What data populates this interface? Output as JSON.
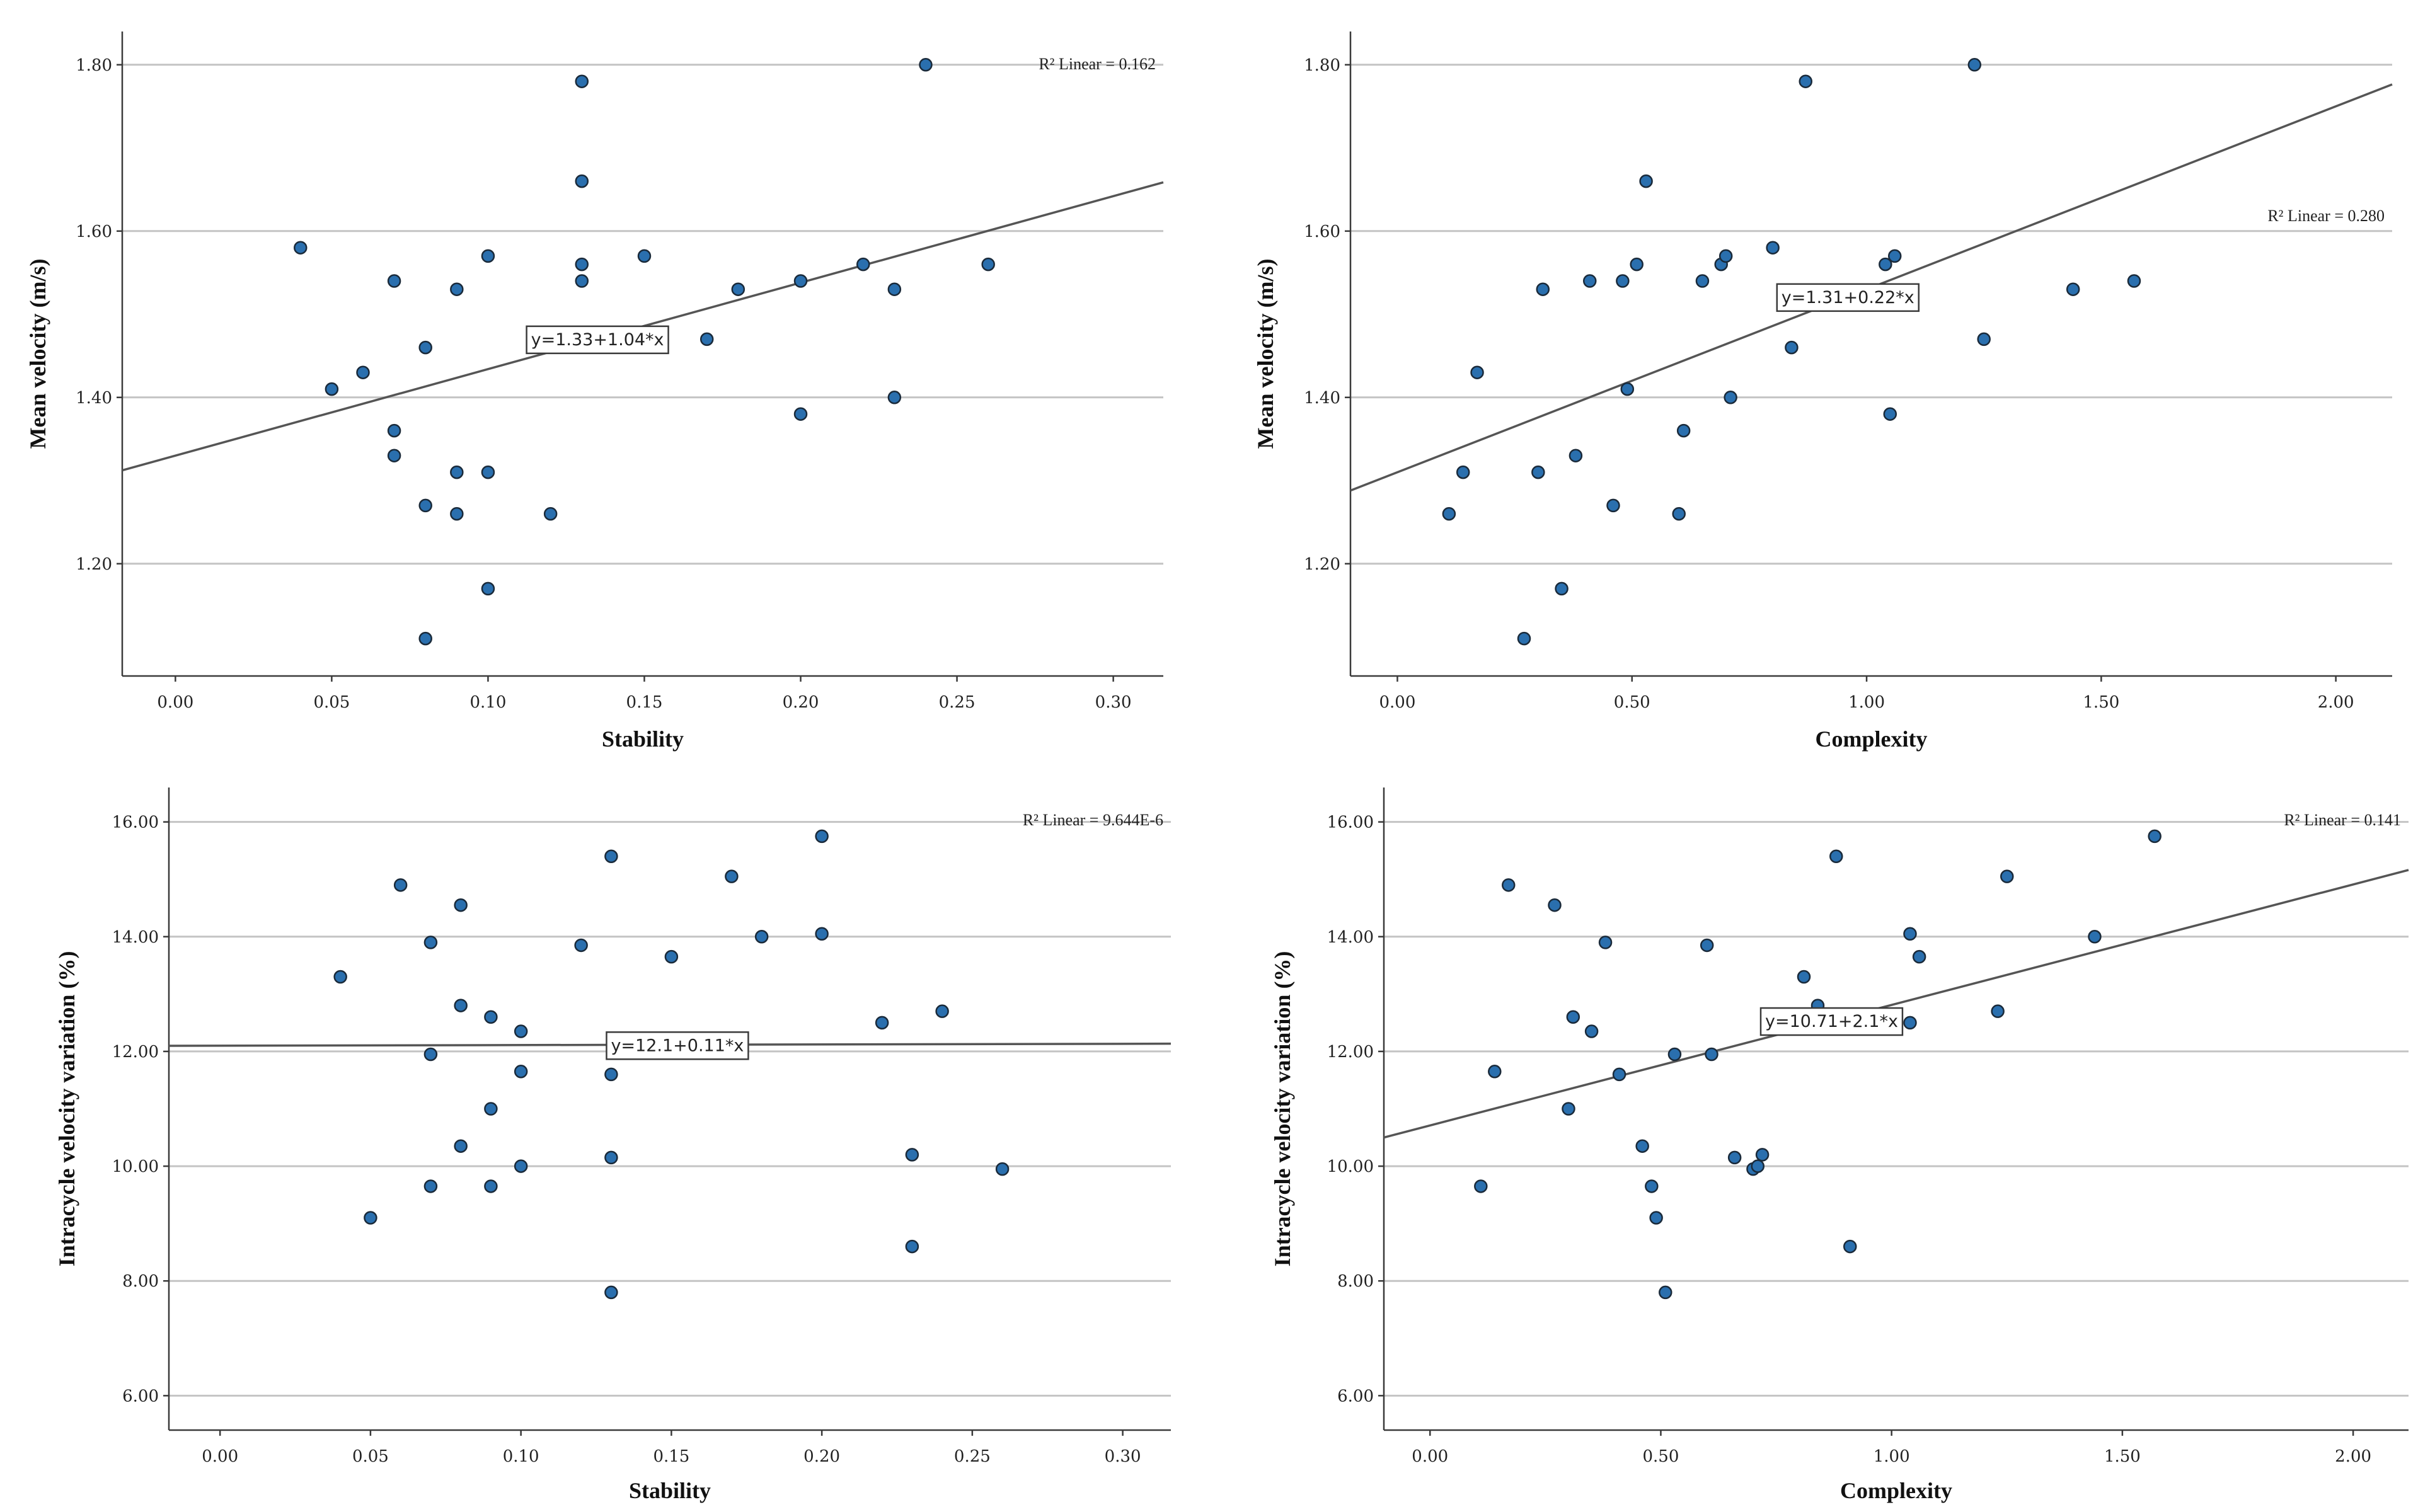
{
  "chart_data": [
    {
      "type": "scatter",
      "xlabel": "Stability",
      "ylabel": "Mean velocity (m/s)",
      "xlim": [
        -0.017,
        0.316
      ],
      "ylim": [
        1.065,
        1.84
      ],
      "xticks": [
        "0.00",
        "0.05",
        "0.10",
        "0.15",
        "0.20",
        "0.25",
        "0.30"
      ],
      "xtick_values": [
        0,
        0.05,
        0.1,
        0.15,
        0.2,
        0.25,
        0.3
      ],
      "yticks": [
        "1.20",
        "1.40",
        "1.60",
        "1.80"
      ],
      "ytick_values": [
        1.2,
        1.4,
        1.6,
        1.8
      ],
      "grid": "horizontal",
      "r2_label": "R² Linear = 0.162",
      "r2_position": "top-right",
      "fit": {
        "intercept": 1.33,
        "slope": 1.04,
        "label": "y=1.33+1.04*x",
        "label_x": 0.135
      },
      "points": [
        [
          0.04,
          1.58
        ],
        [
          0.05,
          1.41
        ],
        [
          0.06,
          1.43
        ],
        [
          0.07,
          1.54
        ],
        [
          0.07,
          1.36
        ],
        [
          0.07,
          1.33
        ],
        [
          0.08,
          1.46
        ],
        [
          0.08,
          1.27
        ],
        [
          0.08,
          1.11
        ],
        [
          0.09,
          1.53
        ],
        [
          0.09,
          1.31
        ],
        [
          0.09,
          1.26
        ],
        [
          0.1,
          1.57
        ],
        [
          0.1,
          1.31
        ],
        [
          0.1,
          1.17
        ],
        [
          0.12,
          1.26
        ],
        [
          0.13,
          1.78
        ],
        [
          0.13,
          1.66
        ],
        [
          0.13,
          1.56
        ],
        [
          0.13,
          1.54
        ],
        [
          0.15,
          1.57
        ],
        [
          0.17,
          1.47
        ],
        [
          0.18,
          1.53
        ],
        [
          0.2,
          1.54
        ],
        [
          0.2,
          1.38
        ],
        [
          0.22,
          1.56
        ],
        [
          0.23,
          1.53
        ],
        [
          0.23,
          1.4
        ],
        [
          0.24,
          1.8
        ],
        [
          0.26,
          1.56
        ]
      ]
    },
    {
      "type": "scatter",
      "xlabel": "Complexity",
      "ylabel": "Mean velocity (m/s)",
      "xlim": [
        -0.1,
        2.12
      ],
      "ylim": [
        1.065,
        1.84
      ],
      "xticks": [
        "0.00",
        "0.50",
        "1.00",
        "1.50",
        "2.00"
      ],
      "xtick_values": [
        0,
        0.5,
        1,
        1.5,
        2
      ],
      "yticks": [
        "1.20",
        "1.40",
        "1.60",
        "1.80"
      ],
      "ytick_values": [
        1.2,
        1.4,
        1.6,
        1.8
      ],
      "grid": "horizontal",
      "r2_label": "R² Linear = 0.280",
      "r2_position": "upper-right",
      "fit": {
        "intercept": 1.31,
        "slope": 0.22,
        "label": "y=1.31+0.22*x",
        "label_x": 0.96
      },
      "points": [
        [
          0.11,
          1.26
        ],
        [
          0.14,
          1.31
        ],
        [
          0.17,
          1.43
        ],
        [
          0.27,
          1.11
        ],
        [
          0.3,
          1.31
        ],
        [
          0.31,
          1.53
        ],
        [
          0.35,
          1.17
        ],
        [
          0.38,
          1.33
        ],
        [
          0.41,
          1.54
        ],
        [
          0.46,
          1.27
        ],
        [
          0.48,
          1.54
        ],
        [
          0.49,
          1.41
        ],
        [
          0.51,
          1.56
        ],
        [
          0.53,
          1.66
        ],
        [
          0.6,
          1.26
        ],
        [
          0.61,
          1.36
        ],
        [
          0.65,
          1.54
        ],
        [
          0.69,
          1.56
        ],
        [
          0.7,
          1.57
        ],
        [
          0.71,
          1.4
        ],
        [
          0.8,
          1.58
        ],
        [
          0.84,
          1.46
        ],
        [
          0.87,
          1.78
        ],
        [
          1.04,
          1.56
        ],
        [
          1.05,
          1.38
        ],
        [
          1.06,
          1.57
        ],
        [
          1.23,
          1.8
        ],
        [
          1.25,
          1.47
        ],
        [
          1.44,
          1.53
        ],
        [
          1.57,
          1.54
        ]
      ]
    },
    {
      "type": "scatter",
      "xlabel": "Stability",
      "ylabel": "Intracycle velocity variation (%)",
      "xlim": [
        -0.017,
        0.316
      ],
      "ylim": [
        5.4,
        16.6
      ],
      "xticks": [
        "0.00",
        "0.05",
        "0.10",
        "0.15",
        "0.20",
        "0.25",
        "0.30"
      ],
      "xtick_values": [
        0,
        0.05,
        0.1,
        0.15,
        0.2,
        0.25,
        0.3
      ],
      "yticks": [
        "6.00",
        "8.00",
        "10.00",
        "12.00",
        "14.00",
        "16.00"
      ],
      "ytick_values": [
        6,
        8,
        10,
        12,
        14,
        16
      ],
      "grid": "horizontal",
      "r2_label": "R² Linear = 9.644E-6",
      "r2_position": "top-right",
      "fit": {
        "intercept": 12.1,
        "slope": 0.11,
        "label": "y=12.1+0.11*x",
        "label_x": 0.152
      },
      "points": [
        [
          0.04,
          13.3
        ],
        [
          0.05,
          9.1
        ],
        [
          0.06,
          14.9
        ],
        [
          0.07,
          13.9
        ],
        [
          0.07,
          11.95
        ],
        [
          0.07,
          9.65
        ],
        [
          0.08,
          14.55
        ],
        [
          0.08,
          12.8
        ],
        [
          0.08,
          10.35
        ],
        [
          0.09,
          12.6
        ],
        [
          0.09,
          11.0
        ],
        [
          0.09,
          9.65
        ],
        [
          0.1,
          12.35
        ],
        [
          0.1,
          11.65
        ],
        [
          0.1,
          10.0
        ],
        [
          0.12,
          13.85
        ],
        [
          0.13,
          15.4
        ],
        [
          0.13,
          11.6
        ],
        [
          0.13,
          10.15
        ],
        [
          0.13,
          7.8
        ],
        [
          0.15,
          13.65
        ],
        [
          0.17,
          15.05
        ],
        [
          0.18,
          14.0
        ],
        [
          0.2,
          15.75
        ],
        [
          0.2,
          14.05
        ],
        [
          0.22,
          12.5
        ],
        [
          0.23,
          10.2
        ],
        [
          0.23,
          8.6
        ],
        [
          0.24,
          12.7
        ],
        [
          0.26,
          9.95
        ]
      ]
    },
    {
      "type": "scatter",
      "xlabel": "Complexity",
      "ylabel": "Intracycle velocity variation (%)",
      "xlim": [
        -0.1,
        2.12
      ],
      "ylim": [
        5.4,
        16.6
      ],
      "xticks": [
        "0.00",
        "0.50",
        "1.00",
        "1.50",
        "2.00"
      ],
      "xtick_values": [
        0,
        0.5,
        1,
        1.5,
        2
      ],
      "yticks": [
        "6.00",
        "8.00",
        "10.00",
        "12.00",
        "14.00",
        "16.00"
      ],
      "ytick_values": [
        6,
        8,
        10,
        12,
        14,
        16
      ],
      "grid": "horizontal",
      "r2_label": "R² Linear = 0.141",
      "r2_position": "top-right",
      "fit": {
        "intercept": 10.71,
        "slope": 2.1,
        "label": "y=10.71+2.1*x",
        "label_x": 0.87
      },
      "points": [
        [
          0.11,
          9.65
        ],
        [
          0.14,
          11.65
        ],
        [
          0.17,
          14.9
        ],
        [
          0.27,
          14.55
        ],
        [
          0.3,
          11.0
        ],
        [
          0.31,
          12.6
        ],
        [
          0.35,
          12.35
        ],
        [
          0.38,
          13.9
        ],
        [
          0.41,
          11.6
        ],
        [
          0.46,
          10.35
        ],
        [
          0.48,
          9.65
        ],
        [
          0.49,
          9.1
        ],
        [
          0.51,
          7.8
        ],
        [
          0.53,
          11.95
        ],
        [
          0.6,
          13.85
        ],
        [
          0.61,
          11.95
        ],
        [
          0.66,
          10.15
        ],
        [
          0.7,
          9.95
        ],
        [
          0.71,
          10.0
        ],
        [
          0.72,
          10.2
        ],
        [
          0.81,
          13.3
        ],
        [
          0.84,
          12.8
        ],
        [
          0.88,
          15.4
        ],
        [
          0.91,
          8.6
        ],
        [
          1.04,
          14.05
        ],
        [
          1.04,
          12.5
        ],
        [
          1.06,
          13.65
        ],
        [
          1.23,
          12.7
        ],
        [
          1.25,
          15.05
        ],
        [
          1.44,
          14.0
        ],
        [
          1.57,
          15.75
        ]
      ]
    }
  ],
  "colors": {
    "point_fill": "#2a6fae",
    "point_stroke": "#1a2a3a",
    "fit_line": "#555555",
    "gridline": "#c4c4c4",
    "axis": "#3a3a3a"
  }
}
